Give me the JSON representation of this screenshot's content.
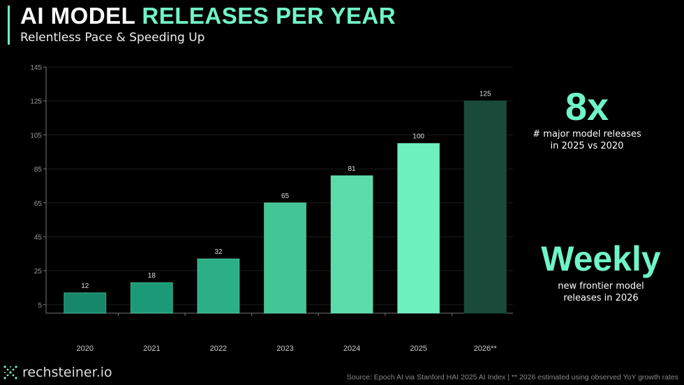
{
  "header": {
    "title_part1": "AI MODEL",
    "title_part2": "RELEASES PER YEAR",
    "subtitle": "Relentless Pace & Speeding Up"
  },
  "colors": {
    "accent": "#6ff5c8",
    "bars": [
      "#16876b",
      "#1c9a77",
      "#2daf85",
      "#44c595",
      "#5cdcaa",
      "#6ff0bf",
      "#1a4a3a"
    ]
  },
  "chart_data": {
    "type": "bar",
    "categories": [
      "2020",
      "2021",
      "2022",
      "2023",
      "2024",
      "2025",
      "2026**"
    ],
    "values": [
      12,
      18,
      32,
      65,
      81,
      100,
      125
    ],
    "data_labels": [
      "12",
      "18",
      "32",
      "65",
      "81",
      "100",
      "125"
    ],
    "yticks": [
      5,
      25,
      45,
      65,
      85,
      105,
      125,
      145
    ],
    "ylim": [
      0,
      145
    ],
    "grid": true,
    "xlabel": "",
    "ylabel": "",
    "title": ""
  },
  "stats": [
    {
      "value": "8x",
      "desc_line1": "# major model releases",
      "desc_line2": "in 2025 vs 2020"
    },
    {
      "value": "Weekly",
      "desc_line1": "new frontier model",
      "desc_line2": "releases in 2026"
    }
  ],
  "footer": {
    "logo_text": "rechsteiner.io",
    "logo_icon": "network-x-icon",
    "source": "Source: Epoch AI via Stanford HAI 2025 AI Index  |  ** 2026 estimated using observed YoY growth rates"
  }
}
